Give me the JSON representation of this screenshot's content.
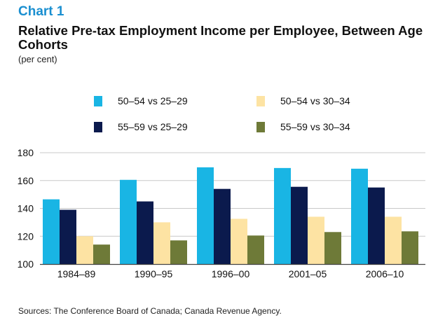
{
  "header": {
    "chart_label": "Chart 1",
    "title": "Relative Pre-tax Employment Income per Employee, Between Age Cohorts",
    "unit": "(per cent)"
  },
  "source": "Sources: The Conference Board of Canada; Canada Revenue Agency.",
  "colors": {
    "chart_label": "#1a8fd0",
    "series": [
      "#19b5e4",
      "#0b1a4d",
      "#fde3a3",
      "#6e7a38"
    ],
    "gridline": "#c8c8c8",
    "axis": "#444444"
  },
  "chart_data": {
    "type": "bar",
    "title": "Relative Pre-tax Employment Income per Employee, Between Age Cohorts",
    "xlabel": "",
    "ylabel": "(per cent)",
    "ylim": [
      100,
      180
    ],
    "yticks": [
      100,
      120,
      140,
      160,
      180
    ],
    "grid": true,
    "legend_position": "top",
    "categories": [
      "1984–89",
      "1990–95",
      "1996–00",
      "2001–05",
      "2006–10"
    ],
    "series": [
      {
        "name": "50–54 vs 25–29",
        "values": [
          146.5,
          160.5,
          169.5,
          169,
          168.5
        ]
      },
      {
        "name": "55–59 vs 25–29",
        "values": [
          139,
          145,
          154,
          155.5,
          155
        ]
      },
      {
        "name": "50–54 vs 30–34",
        "values": [
          120,
          130,
          132.5,
          134,
          134
        ]
      },
      {
        "name": "55–59 vs 30–34",
        "values": [
          114,
          117,
          120.5,
          123,
          123.5
        ]
      }
    ]
  }
}
